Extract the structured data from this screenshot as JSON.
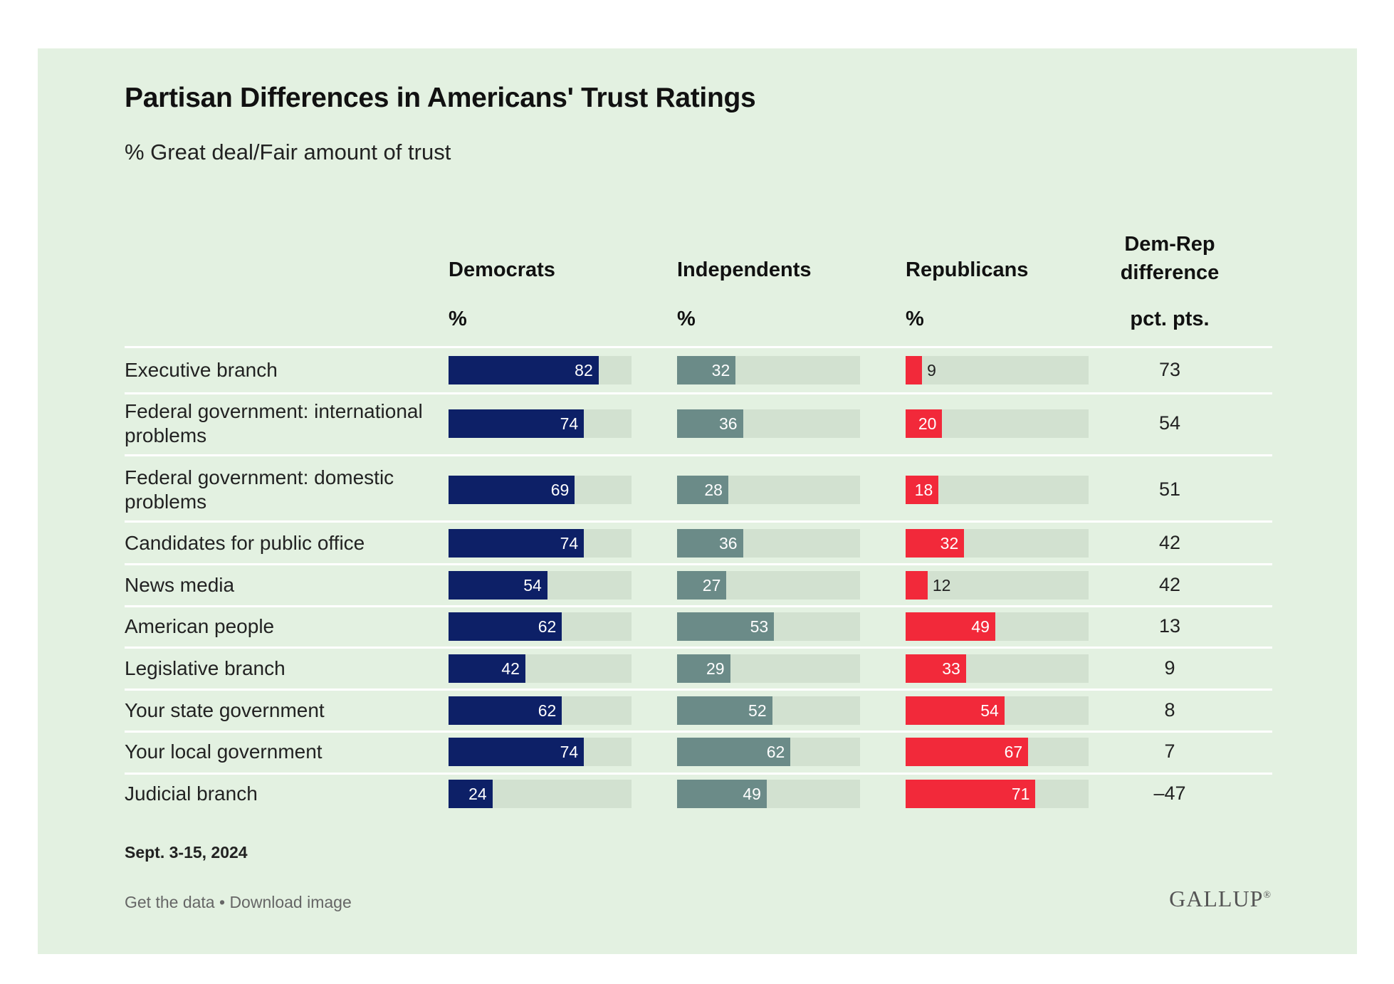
{
  "chart_data": {
    "type": "bar",
    "title": "Partisan Differences in Americans' Trust Ratings",
    "subtitle": "% Great deal/Fair amount of trust",
    "xlim": [
      0,
      100
    ],
    "categories": [
      "Executive branch",
      "Federal government: international problems",
      "Federal government: domestic problems",
      "Candidates for public office",
      "News media",
      "American people",
      "Legislative branch",
      "Your state government",
      "Your local government",
      "Judicial branch"
    ],
    "series": [
      {
        "name": "Democrats",
        "unit": "%",
        "color": "#0d2067",
        "values": [
          82,
          74,
          69,
          74,
          54,
          62,
          42,
          62,
          74,
          24
        ]
      },
      {
        "name": "Independents",
        "unit": "%",
        "color": "#6b8b88",
        "values": [
          32,
          36,
          28,
          36,
          27,
          53,
          29,
          52,
          62,
          49
        ]
      },
      {
        "name": "Republicans",
        "unit": "%",
        "color": "#f2293a",
        "values": [
          9,
          20,
          18,
          32,
          12,
          49,
          33,
          54,
          67,
          71
        ]
      }
    ],
    "difference": {
      "header_line1": "Dem-Rep",
      "header_line2": "difference",
      "unit": "pct. pts.",
      "values": [
        "73",
        "54",
        "51",
        "42",
        "42",
        "13",
        "9",
        "8",
        "7",
        "–47"
      ]
    },
    "track_color": "#d2e1d0",
    "background_color": "#e3f1e1"
  },
  "footer": {
    "date": "Sept. 3-15, 2024",
    "get_data": "Get the data",
    "separator": " • ",
    "download": "Download image",
    "logo": "GALLUP",
    "logo_mark": "®"
  }
}
